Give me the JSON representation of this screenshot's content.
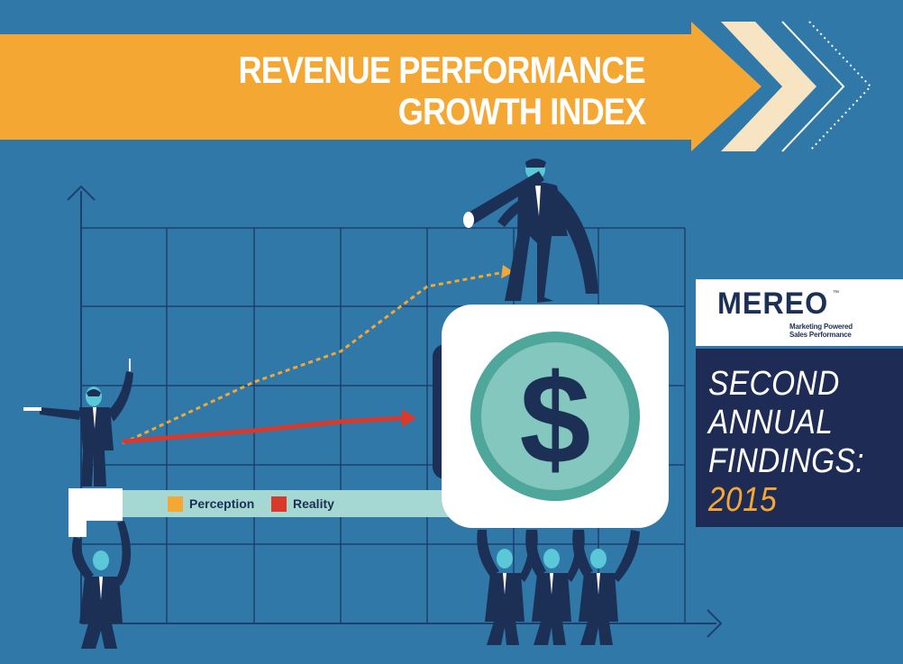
{
  "banner": {
    "title_line1": "REVENUE PERFORMANCE",
    "title_line2": "GROWTH INDEX",
    "color": "#f5a733"
  },
  "legend": {
    "perception_label": "Perception",
    "reality_label": "Reality",
    "perception_color": "#f5a733",
    "reality_color": "#d9392b"
  },
  "logo": {
    "name": "MEREO",
    "trademark": "™",
    "tagline_line1": "Marketing Powered",
    "tagline_line2": "Sales Performance"
  },
  "findings": {
    "line1": "SECOND",
    "line2": "ANNUAL",
    "line3": "FINDINGS:",
    "year": "2015",
    "year_color": "#f5a733"
  },
  "illustration": {
    "background_color": "#2f78a8",
    "grid_color": "#1e3f6e",
    "coin_symbol": "$",
    "icons": [
      "businessman-with-telescope-icon",
      "businessman-pointing-icon",
      "businessmen-lifting-icon",
      "dollar-coin-icon"
    ]
  }
}
